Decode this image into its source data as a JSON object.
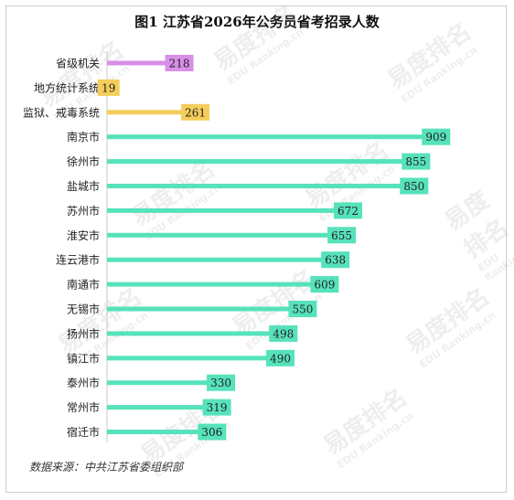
{
  "title": "图1 江苏省2026年公务员省考招录人数",
  "source": "数据来源：中共江苏省委组织部",
  "watermark": {
    "line1": "易度排名",
    "line2": "EDU Ranking.cn"
  },
  "colors": {
    "provincial": "#d88fe8",
    "special": "#f5cd5b",
    "city": "#56e2bb"
  },
  "chart_data": {
    "type": "bar",
    "orientation": "horizontal",
    "title": "图1 江苏省2026年公务员省考招录人数",
    "categories": [
      "省级机关",
      "地方统计系统",
      "监狱、戒毒系统",
      "南京市",
      "徐州市",
      "盐城市",
      "苏州市",
      "淮安市",
      "连云港市",
      "南通市",
      "无锡市",
      "扬州市",
      "镇江市",
      "泰州市",
      "常州市",
      "宿迁市"
    ],
    "values": [
      218,
      19,
      261,
      909,
      855,
      850,
      672,
      655,
      638,
      609,
      550,
      498,
      490,
      330,
      319,
      306
    ],
    "groups": [
      "provincial",
      "special",
      "special",
      "city",
      "city",
      "city",
      "city",
      "city",
      "city",
      "city",
      "city",
      "city",
      "city",
      "city",
      "city",
      "city"
    ],
    "xlim": [
      0,
      960
    ],
    "xlabel": "",
    "ylabel": "",
    "grid": false,
    "data_labels": true
  }
}
